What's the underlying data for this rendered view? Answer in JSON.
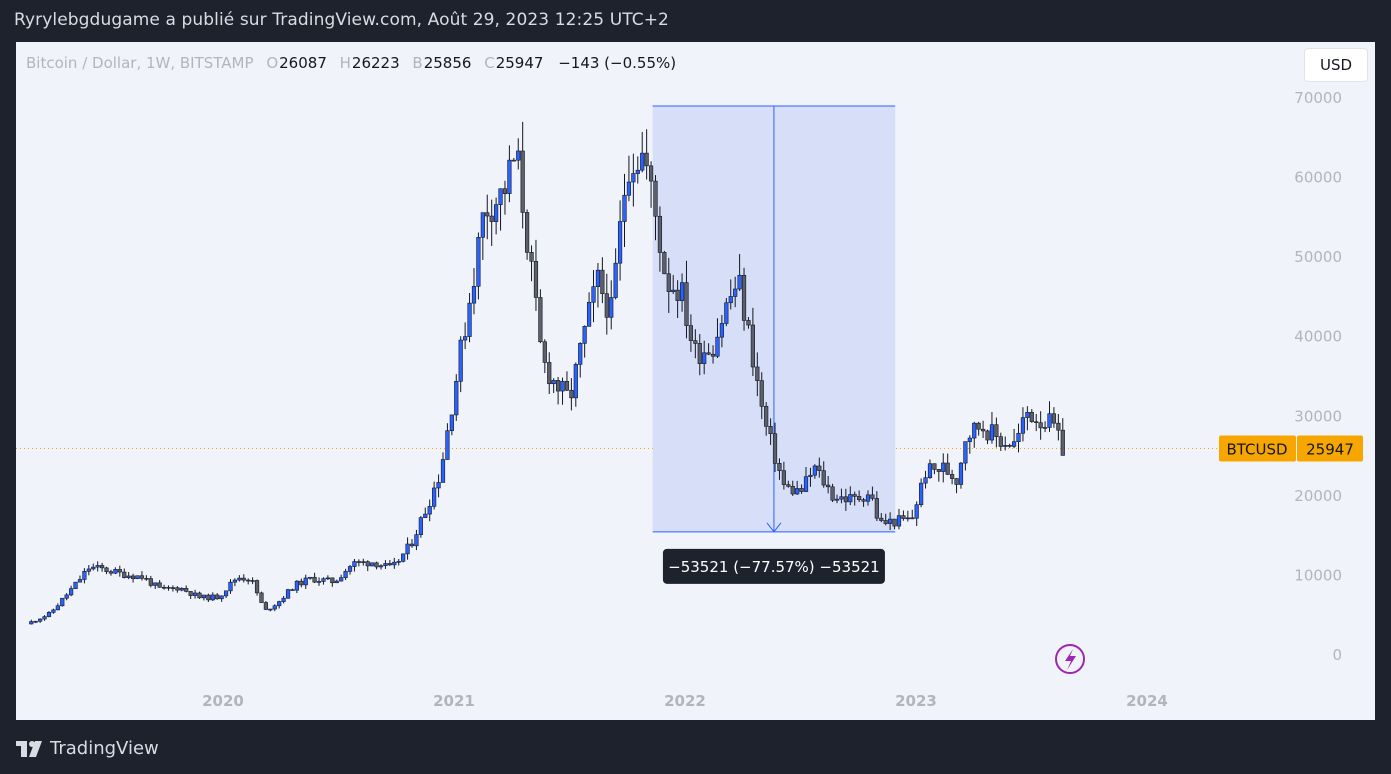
{
  "header": {
    "title": "Ryrylebgdugame a publié sur TradingView.com, Août 29, 2023 12:25 UTC+2"
  },
  "legend": {
    "symbol": "Bitcoin / Dollar, 1W, BITSTAMP",
    "open_label": "O",
    "open": "26087",
    "high_label": "H",
    "high": "26223",
    "low_label": "B",
    "low": "25856",
    "close_label": "C",
    "close": "25947",
    "change": "−143 (−0.55%)"
  },
  "currency_button": "USD",
  "price_tag": {
    "label": "BTCUSD",
    "value": "25947"
  },
  "measure": {
    "label": "−53521 (−77.57%) −53521"
  },
  "footer": {
    "brand": "TradingView"
  },
  "colors": {
    "up": "#2962ff",
    "down": "#5d606b",
    "measure_fill": "#d3ddf6",
    "measure_line": "#2962ff",
    "price_line": "#f7a600",
    "background": "#f0f3f9"
  },
  "chart_data": {
    "type": "candlestick",
    "title": "",
    "xlabel": "",
    "ylabel": "",
    "ylim": [
      0,
      70000
    ],
    "y_ticks": [
      0,
      10000,
      20000,
      30000,
      40000,
      50000,
      60000,
      70000
    ],
    "x_ticks": [
      "2020",
      "2021",
      "2022",
      "2023",
      "2024"
    ],
    "x_tick_years": [
      2020,
      2021,
      2022,
      2023,
      2024
    ],
    "grid": false,
    "last_price": 25947,
    "measure": {
      "from_year": 2021.86,
      "to_year": 2022.91,
      "from_price": 69000,
      "to_price": 15479,
      "change": -53521,
      "change_pct": -77.57
    },
    "series": [
      {
        "name": "BTCUSD",
        "points": [
          [
            2019.17,
            3900
          ],
          [
            2019.27,
            5200
          ],
          [
            2019.37,
            8500
          ],
          [
            2019.44,
            11000
          ],
          [
            2019.5,
            10800
          ],
          [
            2019.58,
            10200
          ],
          [
            2019.67,
            9800
          ],
          [
            2019.75,
            8200
          ],
          [
            2019.83,
            8500
          ],
          [
            2019.92,
            7200
          ],
          [
            2020.0,
            7300
          ],
          [
            2020.08,
            9800
          ],
          [
            2020.14,
            9600
          ],
          [
            2020.2,
            5500
          ],
          [
            2020.26,
            6700
          ],
          [
            2020.33,
            8800
          ],
          [
            2020.4,
            9600
          ],
          [
            2020.5,
            9200
          ],
          [
            2020.58,
            11500
          ],
          [
            2020.67,
            11700
          ],
          [
            2020.75,
            10800
          ],
          [
            2020.83,
            13800
          ],
          [
            2020.9,
            18500
          ],
          [
            2020.96,
            23000
          ],
          [
            2021.03,
            35000
          ],
          [
            2021.1,
            47000
          ],
          [
            2021.15,
            56000
          ],
          [
            2021.23,
            58000
          ],
          [
            2021.29,
            63000
          ],
          [
            2021.35,
            49000
          ],
          [
            2021.4,
            37000
          ],
          [
            2021.46,
            34000
          ],
          [
            2021.52,
            32000
          ],
          [
            2021.58,
            40000
          ],
          [
            2021.64,
            47000
          ],
          [
            2021.7,
            43000
          ],
          [
            2021.77,
            62000
          ],
          [
            2021.84,
            63000
          ],
          [
            2021.88,
            57000
          ],
          [
            2021.94,
            47000
          ],
          [
            2022.0,
            46000
          ],
          [
            2022.06,
            38000
          ],
          [
            2022.14,
            39000
          ],
          [
            2022.2,
            44000
          ],
          [
            2022.25,
            47000
          ],
          [
            2022.31,
            38000
          ],
          [
            2022.36,
            29500
          ],
          [
            2022.45,
            21000
          ],
          [
            2022.52,
            20500
          ],
          [
            2022.58,
            23500
          ],
          [
            2022.66,
            20000
          ],
          [
            2022.75,
            19500
          ],
          [
            2022.82,
            20500
          ],
          [
            2022.86,
            16500
          ],
          [
            2022.92,
            16800
          ],
          [
            2023.0,
            17000
          ],
          [
            2023.06,
            23000
          ],
          [
            2023.14,
            23500
          ],
          [
            2023.2,
            22000
          ],
          [
            2023.23,
            27500
          ],
          [
            2023.3,
            29000
          ],
          [
            2023.38,
            27000
          ],
          [
            2023.45,
            26500
          ],
          [
            2023.5,
            30500
          ],
          [
            2023.56,
            29500
          ],
          [
            2023.61,
            29000
          ],
          [
            2023.65,
            25947
          ]
        ]
      }
    ]
  }
}
